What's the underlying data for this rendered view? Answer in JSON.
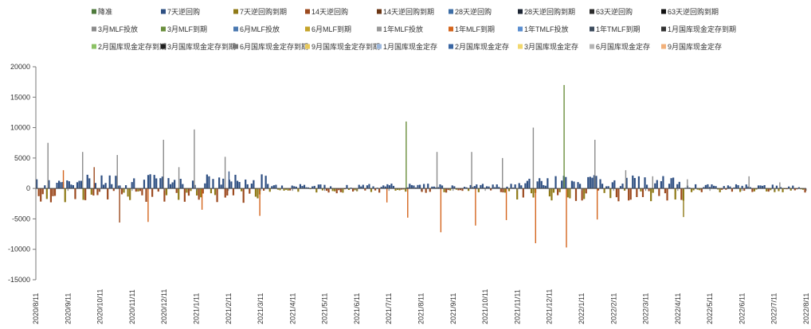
{
  "chart_data": {
    "type": "bar",
    "ylim": [
      -15000,
      20000
    ],
    "yticks": [
      -15000,
      -10000,
      -5000,
      0,
      5000,
      10000,
      15000,
      20000
    ],
    "xtick_labels": [
      "2020/8/11",
      "2020/9/11",
      "2020/10/11",
      "2020/11/11",
      "2020/12/11",
      "2021/1/11",
      "2021/2/11",
      "2021/3/11",
      "2021/4/11",
      "2021/5/11",
      "2021/6/11",
      "2021/7/11",
      "2021/8/11",
      "2021/9/11",
      "2021/10/11",
      "2021/11/11",
      "2021/12/11",
      "2022/1/11",
      "2022/2/11",
      "2022/3/11",
      "2022/4/11",
      "2022/5/11",
      "2022/6/11",
      "2022/7/11",
      "2022/8/11"
    ],
    "legend_position": "top",
    "series": [
      {
        "name": "降准",
        "color": "#4e7a3b"
      },
      {
        "name": "7天逆回购",
        "color": "#2e4f82"
      },
      {
        "name": "7天逆回购到期",
        "color": "#8f7a17"
      },
      {
        "name": "14天逆回购",
        "color": "#9c4a1f"
      },
      {
        "name": "14天逆回购到期",
        "color": "#6b3614"
      },
      {
        "name": "28天逆回购",
        "color": "#3d6ea6"
      },
      {
        "name": "28天逆回购到期",
        "color": "#1c2533"
      },
      {
        "name": "63天逆回购",
        "color": "#2b2b2b"
      },
      {
        "name": "63天逆回购到期",
        "color": "#111111"
      },
      {
        "name": "3月MLF投放",
        "color": "#8c8c8c"
      },
      {
        "name": "3月MLF到期",
        "color": "#6b8f3e"
      },
      {
        "name": "6月MLF投放",
        "color": "#4a78b0"
      },
      {
        "name": "6月MLF到期",
        "color": "#c4a32a"
      },
      {
        "name": "1年MLF投放",
        "color": "#999999"
      },
      {
        "name": "1年MLF到期",
        "color": "#d4651d"
      },
      {
        "name": "1年TMLF投放",
        "color": "#5a8ed0"
      },
      {
        "name": "1年TMLF到期",
        "color": "#3d4b5c"
      },
      {
        "name": "1月国库现金定存到期",
        "color": "#333333"
      },
      {
        "name": "2月国库现金定存到期",
        "color": "#8cc265"
      },
      {
        "name": "3月国库现金定存到期",
        "color": "#1f1f1f"
      },
      {
        "name": "6月国库现金定存到期",
        "color": "#777777"
      },
      {
        "name": "9月国库现金定存到期",
        "color": "#e8c95a"
      },
      {
        "name": "1月国库现金定存",
        "color": "#9db8dd"
      },
      {
        "name": "2月国库现金定存",
        "color": "#3a66a3"
      },
      {
        "name": "3月国库现金定存",
        "color": "#f2d86e"
      },
      {
        "name": "6月国库现金定存",
        "color": "#b5b5b5"
      },
      {
        "name": "9月国库现金定存",
        "color": "#f2b07a"
      }
    ],
    "spikes": [
      {
        "t": 0.015,
        "v": 7500,
        "color": "#8c8c8c"
      },
      {
        "t": 0.035,
        "v": 3000,
        "color": "#d4651d"
      },
      {
        "t": 0.06,
        "v": 6000,
        "color": "#8c8c8c"
      },
      {
        "t": 0.075,
        "v": 3500,
        "color": "#9c4a1f"
      },
      {
        "t": 0.105,
        "v": 5500,
        "color": "#8c8c8c"
      },
      {
        "t": 0.108,
        "v": -5600,
        "color": "#9c4a1f"
      },
      {
        "t": 0.145,
        "v": -5500,
        "color": "#d4651d"
      },
      {
        "t": 0.165,
        "v": 8000,
        "color": "#8c8c8c"
      },
      {
        "t": 0.185,
        "v": 3500,
        "color": "#8c8c8c"
      },
      {
        "t": 0.205,
        "v": 9700,
        "color": "#8c8c8c"
      },
      {
        "t": 0.215,
        "v": -3500,
        "color": "#d4651d"
      },
      {
        "t": 0.245,
        "v": 5200,
        "color": "#8c8c8c"
      },
      {
        "t": 0.25,
        "v": 2800,
        "color": "#2e4f82"
      },
      {
        "t": 0.29,
        "v": -4500,
        "color": "#d4651d"
      },
      {
        "t": 0.455,
        "v": -2300,
        "color": "#d4651d"
      },
      {
        "t": 0.48,
        "v": 11000,
        "color": "#6b8f3e"
      },
      {
        "t": 0.482,
        "v": -4800,
        "color": "#d4651d"
      },
      {
        "t": 0.52,
        "v": 6000,
        "color": "#8c8c8c"
      },
      {
        "t": 0.525,
        "v": -7200,
        "color": "#d4651d"
      },
      {
        "t": 0.565,
        "v": 6000,
        "color": "#8c8c8c"
      },
      {
        "t": 0.57,
        "v": -6100,
        "color": "#d4651d"
      },
      {
        "t": 0.605,
        "v": 5000,
        "color": "#8c8c8c"
      },
      {
        "t": 0.61,
        "v": -5200,
        "color": "#d4651d"
      },
      {
        "t": 0.645,
        "v": 10000,
        "color": "#8c8c8c"
      },
      {
        "t": 0.648,
        "v": -9000,
        "color": "#d4651d"
      },
      {
        "t": 0.685,
        "v": 17000,
        "color": "#6b8f3e"
      },
      {
        "t": 0.688,
        "v": -9700,
        "color": "#d4651d"
      },
      {
        "t": 0.725,
        "v": 8000,
        "color": "#8c8c8c"
      },
      {
        "t": 0.728,
        "v": -5100,
        "color": "#d4651d"
      },
      {
        "t": 0.765,
        "v": 3000,
        "color": "#8c8c8c"
      },
      {
        "t": 0.8,
        "v": 2000,
        "color": "#8c8c8c"
      },
      {
        "t": 0.84,
        "v": -4700,
        "color": "#8f7a17"
      },
      {
        "t": 0.845,
        "v": 1500,
        "color": "#8c8c8c"
      },
      {
        "t": 0.925,
        "v": 2000,
        "color": "#8c8c8c"
      },
      {
        "t": 0.965,
        "v": 1000,
        "color": "#8c8c8c"
      }
    ]
  }
}
